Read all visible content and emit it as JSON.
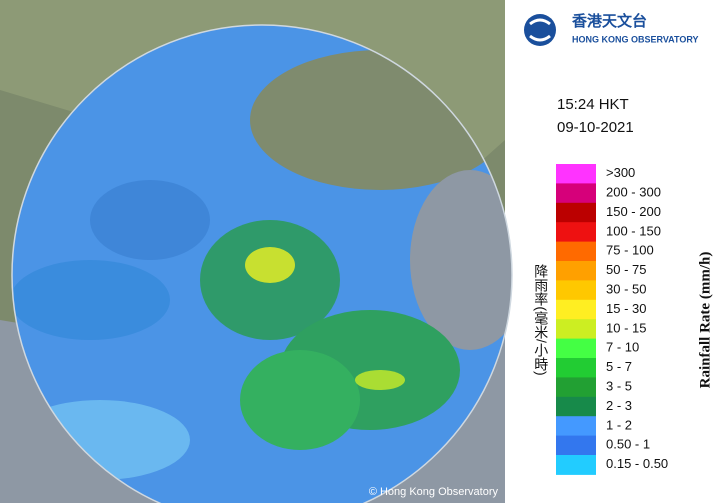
{
  "logo": {
    "name_zh": "香港天文台",
    "name_en": "HONG KONG OBSERVATORY"
  },
  "time": "15:24 HKT",
  "date": "09-10-2021",
  "legend": {
    "title_zh": "降雨率(毫米/小時)",
    "title_en": "Rainfall Rate (mm/h)",
    "items": [
      {
        "label": ">300",
        "color": "#ff33ff"
      },
      {
        "label": "200 - 300",
        "color": "#d6007a"
      },
      {
        "label": "150 - 200",
        "color": "#bb0000"
      },
      {
        "label": "100 - 150",
        "color": "#ee1111"
      },
      {
        "label": "75 - 100",
        "color": "#ff6a00"
      },
      {
        "label": "50 - 75",
        "color": "#ffa000"
      },
      {
        "label": "30 - 50",
        "color": "#ffc800"
      },
      {
        "label": "15 - 30",
        "color": "#ffee22"
      },
      {
        "label": "10 - 15",
        "color": "#ccee22"
      },
      {
        "label": "7 - 10",
        "color": "#44ff44"
      },
      {
        "label": "5 - 7",
        "color": "#22cc33"
      },
      {
        "label": "3 - 5",
        "color": "#22a033"
      },
      {
        "label": "2 - 3",
        "color": "#178a4a"
      },
      {
        "label": "1 - 2",
        "color": "#4499ff"
      },
      {
        "label": "0.50 - 1",
        "color": "#3377ee"
      },
      {
        "label": "0.15 - 0.50",
        "color": "#22ccff"
      }
    ]
  },
  "copyright": "© Hong Kong Observatory"
}
